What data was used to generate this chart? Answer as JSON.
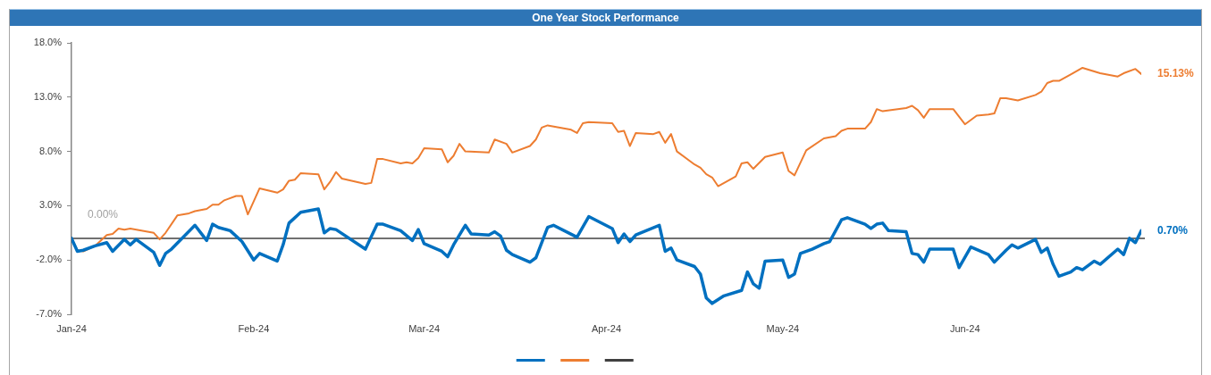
{
  "chart_data": {
    "type": "line",
    "title": "One Year Stock Performance",
    "xlim": [
      "2024-01-02",
      "2024-07-02"
    ],
    "xticks": [
      {
        "value": "2024-01-02",
        "label": "Jan-24"
      },
      {
        "value": "2024-02-02",
        "label": "Feb-24"
      },
      {
        "value": "2024-03-02",
        "label": "Mar-24"
      },
      {
        "value": "2024-04-02",
        "label": "Apr-24"
      },
      {
        "value": "2024-05-02",
        "label": "May-24"
      },
      {
        "value": "2024-06-02",
        "label": "Jun-24"
      }
    ],
    "ylim": [
      -7,
      18
    ],
    "yticks": [
      {
        "value": -7,
        "label": "-7.0%"
      },
      {
        "value": -2,
        "label": "-2.0%"
      },
      {
        "value": 3,
        "label": "3.0%"
      },
      {
        "value": 8,
        "label": "8.0%"
      },
      {
        "value": 13,
        "label": "13.0%"
      },
      {
        "value": 18,
        "label": "18.0%"
      }
    ],
    "legend": "bottom",
    "marker": "none",
    "ref_lines": [
      {
        "axis": "y",
        "value": 0,
        "label": "0.00%",
        "color": "#404040"
      }
    ],
    "series": [
      {
        "color": "#0070c0",
        "x": [
          "2024-01-02",
          "2024-01-03",
          "2024-01-04",
          "2024-01-06",
          "2024-01-08",
          "2024-01-09",
          "2024-01-11",
          "2024-01-12",
          "2024-01-13",
          "2024-01-16",
          "2024-01-17",
          "2024-01-18",
          "2024-01-19",
          "2024-01-23",
          "2024-01-25",
          "2024-01-26",
          "2024-01-27",
          "2024-01-29",
          "2024-01-31",
          "2024-02-02",
          "2024-02-03",
          "2024-02-06",
          "2024-02-07",
          "2024-02-08",
          "2024-02-10",
          "2024-02-13",
          "2024-02-14",
          "2024-02-15",
          "2024-02-16",
          "2024-02-21",
          "2024-02-23",
          "2024-02-24",
          "2024-02-27",
          "2024-02-29",
          "2024-03-01",
          "2024-03-02",
          "2024-03-05",
          "2024-03-06",
          "2024-03-07",
          "2024-03-09",
          "2024-03-10",
          "2024-03-13",
          "2024-03-14",
          "2024-03-15",
          "2024-03-16",
          "2024-03-17",
          "2024-03-20",
          "2024-03-21",
          "2024-03-23",
          "2024-03-24",
          "2024-03-28",
          "2024-03-30",
          "2024-04-03",
          "2024-04-04",
          "2024-04-05",
          "2024-04-06",
          "2024-04-07",
          "2024-04-11",
          "2024-04-12",
          "2024-04-13",
          "2024-04-14",
          "2024-04-17",
          "2024-04-18",
          "2024-04-19",
          "2024-04-20",
          "2024-04-22",
          "2024-04-25",
          "2024-04-26",
          "2024-04-27",
          "2024-04-28",
          "2024-04-29",
          "2024-05-02",
          "2024-05-03",
          "2024-05-04",
          "2024-05-05",
          "2024-05-07",
          "2024-05-09",
          "2024-05-10",
          "2024-05-12",
          "2024-05-13",
          "2024-05-16",
          "2024-05-17",
          "2024-05-18",
          "2024-05-19",
          "2024-05-20",
          "2024-05-23",
          "2024-05-24",
          "2024-05-25",
          "2024-05-26",
          "2024-05-27",
          "2024-05-31",
          "2024-06-01",
          "2024-06-03",
          "2024-06-06",
          "2024-06-07",
          "2024-06-09",
          "2024-06-10",
          "2024-06-11",
          "2024-06-14",
          "2024-06-15",
          "2024-06-16",
          "2024-06-17",
          "2024-06-18",
          "2024-06-20",
          "2024-06-21",
          "2024-06-22",
          "2024-06-24",
          "2024-06-25",
          "2024-06-28",
          "2024-06-29",
          "2024-06-30",
          "2024-07-01",
          "2024-07-02"
        ],
        "values": [
          0,
          -1.2,
          -1.1,
          -0.7,
          -0.4,
          -1.2,
          -0.1,
          -0.6,
          -0.1,
          -1.3,
          -2.5,
          -1.4,
          -1.0,
          1.2,
          -0.2,
          1.3,
          1.0,
          0.7,
          -0.3,
          -2.0,
          -1.4,
          -2.1,
          -0.6,
          1.4,
          2.4,
          2.7,
          0.5,
          0.9,
          0.8,
          -1.0,
          1.3,
          1.3,
          0.7,
          -0.2,
          0.8,
          -0.5,
          -1.2,
          -1.7,
          -0.6,
          1.2,
          0.4,
          0.3,
          0.6,
          0.2,
          -1.1,
          -1.5,
          -2.2,
          -1.8,
          1.0,
          1.2,
          0.1,
          2.0,
          0.9,
          -0.4,
          0.4,
          -0.3,
          0.3,
          1.2,
          -1.2,
          -0.9,
          -2.0,
          -2.6,
          -3.3,
          -5.5,
          -6.0,
          -5.3,
          -4.8,
          -3.1,
          -4.2,
          -4.6,
          -2.1,
          -2.0,
          -3.6,
          -3.3,
          -1.4,
          -1.0,
          -0.5,
          -0.3,
          1.7,
          1.9,
          1.3,
          0.9,
          1.3,
          1.4,
          0.7,
          0.6,
          -1.4,
          -1.5,
          -2.2,
          -1.0,
          -1.0,
          -2.7,
          -0.8,
          -1.5,
          -2.2,
          -1.1,
          -0.6,
          -0.9,
          -0.1,
          -1.3,
          -0.9,
          -2.4,
          -3.5,
          -3.1,
          -2.7,
          -2.9,
          -2.1,
          -2.4,
          -1.0,
          -1.5,
          0.0,
          -0.4,
          0.7
        ],
        "value_labels": [
          null,
          null,
          null,
          null,
          null,
          null,
          null,
          null,
          null,
          null,
          null,
          null,
          null,
          null,
          null,
          null,
          null,
          null,
          null,
          null,
          null,
          null,
          null,
          null,
          null,
          null,
          null,
          null,
          null,
          null,
          null,
          null,
          null,
          null,
          null,
          null,
          null,
          null,
          null,
          null,
          null,
          null,
          null,
          null,
          null,
          null,
          null,
          null,
          null,
          null,
          null,
          null,
          null,
          null,
          null,
          null,
          null,
          null,
          null,
          null,
          null,
          null,
          null,
          null,
          null,
          null,
          null,
          null,
          null,
          null,
          null,
          null,
          null,
          null,
          null,
          null,
          null,
          null,
          null,
          null,
          null,
          null,
          null,
          null,
          null,
          null,
          null,
          null,
          null,
          null,
          null,
          null,
          null,
          null,
          null,
          null,
          null,
          null,
          null,
          null,
          null,
          null,
          null,
          null,
          null,
          null,
          null,
          null,
          null,
          null,
          null,
          null,
          "0.70%"
        ]
      },
      {
        "color": "#ed7d31",
        "x": [
          "2024-01-02",
          "2024-01-03",
          "2024-01-04",
          "2024-01-06",
          "2024-01-08",
          "2024-01-09",
          "2024-01-10",
          "2024-01-11",
          "2024-01-12",
          "2024-01-16",
          "2024-01-17",
          "2024-01-18",
          "2024-01-20",
          "2024-01-22",
          "2024-01-23",
          "2024-01-25",
          "2024-01-26",
          "2024-01-27",
          "2024-01-28",
          "2024-01-30",
          "2024-01-31",
          "2024-02-01",
          "2024-02-03",
          "2024-02-06",
          "2024-02-07",
          "2024-02-08",
          "2024-02-09",
          "2024-02-10",
          "2024-02-13",
          "2024-02-14",
          "2024-02-15",
          "2024-02-16",
          "2024-02-17",
          "2024-02-21",
          "2024-02-22",
          "2024-02-23",
          "2024-02-24",
          "2024-02-27",
          "2024-02-28",
          "2024-02-29",
          "2024-03-01",
          "2024-03-02",
          "2024-03-05",
          "2024-03-06",
          "2024-03-07",
          "2024-03-08",
          "2024-03-09",
          "2024-03-13",
          "2024-03-14",
          "2024-03-16",
          "2024-03-17",
          "2024-03-20",
          "2024-03-21",
          "2024-03-22",
          "2024-03-23",
          "2024-03-27",
          "2024-03-28",
          "2024-03-29",
          "2024-03-30",
          "2024-04-03",
          "2024-04-04",
          "2024-04-05",
          "2024-04-06",
          "2024-04-07",
          "2024-04-10",
          "2024-04-11",
          "2024-04-12",
          "2024-04-13",
          "2024-04-14",
          "2024-04-17",
          "2024-04-18",
          "2024-04-19",
          "2024-04-20",
          "2024-04-21",
          "2024-04-24",
          "2024-04-25",
          "2024-04-26",
          "2024-04-27",
          "2024-04-29",
          "2024-05-02",
          "2024-05-03",
          "2024-05-04",
          "2024-05-06",
          "2024-05-09",
          "2024-05-11",
          "2024-05-12",
          "2024-05-13",
          "2024-05-16",
          "2024-05-17",
          "2024-05-18",
          "2024-05-19",
          "2024-05-23",
          "2024-05-24",
          "2024-05-25",
          "2024-05-26",
          "2024-05-27",
          "2024-05-31",
          "2024-06-02",
          "2024-06-04",
          "2024-06-06",
          "2024-06-07",
          "2024-06-08",
          "2024-06-09",
          "2024-06-11",
          "2024-06-14",
          "2024-06-15",
          "2024-06-16",
          "2024-06-17",
          "2024-06-18",
          "2024-06-20",
          "2024-06-22",
          "2024-06-25",
          "2024-06-28",
          "2024-06-29",
          "2024-07-01",
          "2024-07-02"
        ],
        "values": [
          0,
          -1.1,
          -1.2,
          -0.7,
          0.3,
          0.4,
          0.9,
          0.8,
          0.9,
          0.5,
          -0.1,
          0.5,
          2.1,
          2.3,
          2.5,
          2.7,
          3.1,
          3.1,
          3.5,
          3.9,
          3.9,
          2.2,
          4.6,
          4.2,
          4.5,
          5.3,
          5.4,
          6.0,
          5.9,
          4.5,
          5.2,
          6.1,
          5.5,
          5.0,
          5.1,
          7.3,
          7.3,
          6.9,
          7.0,
          6.9,
          7.4,
          8.3,
          8.2,
          7.0,
          7.6,
          8.7,
          8.0,
          7.9,
          9.1,
          8.7,
          7.9,
          8.5,
          9.1,
          10.2,
          10.4,
          10.0,
          9.7,
          10.6,
          10.7,
          10.6,
          9.8,
          9.9,
          8.5,
          9.7,
          9.6,
          9.8,
          8.8,
          9.6,
          8.0,
          6.8,
          6.5,
          5.9,
          5.6,
          4.8,
          5.7,
          6.9,
          7.0,
          6.4,
          7.5,
          7.9,
          6.2,
          5.8,
          8.1,
          9.2,
          9.4,
          9.9,
          10.1,
          10.1,
          10.7,
          11.9,
          11.7,
          12.0,
          12.2,
          11.8,
          11.1,
          11.9,
          11.9,
          10.5,
          11.3,
          11.4,
          11.5,
          12.9,
          12.9,
          12.7,
          13.2,
          13.5,
          14.3,
          14.5,
          14.5,
          15.1,
          15.7,
          15.2,
          14.9,
          15.2,
          15.6,
          15.13
        ],
        "value_labels": [
          null,
          null,
          null,
          null,
          null,
          null,
          null,
          null,
          null,
          null,
          null,
          null,
          null,
          null,
          null,
          null,
          null,
          null,
          null,
          null,
          null,
          null,
          null,
          null,
          null,
          null,
          null,
          null,
          null,
          null,
          null,
          null,
          null,
          null,
          null,
          null,
          null,
          null,
          null,
          null,
          null,
          null,
          null,
          null,
          null,
          null,
          null,
          null,
          null,
          null,
          null,
          null,
          null,
          null,
          null,
          null,
          null,
          null,
          null,
          null,
          null,
          null,
          null,
          null,
          null,
          null,
          null,
          null,
          null,
          null,
          null,
          null,
          null,
          null,
          null,
          null,
          null,
          null,
          null,
          null,
          null,
          null,
          null,
          null,
          null,
          null,
          null,
          null,
          null,
          null,
          null,
          null,
          null,
          null,
          null,
          null,
          null,
          null,
          null,
          null,
          null,
          null,
          null,
          null,
          null,
          null,
          null,
          null,
          null,
          null,
          null,
          null,
          null,
          null,
          null,
          "15.13%"
        ]
      }
    ]
  }
}
